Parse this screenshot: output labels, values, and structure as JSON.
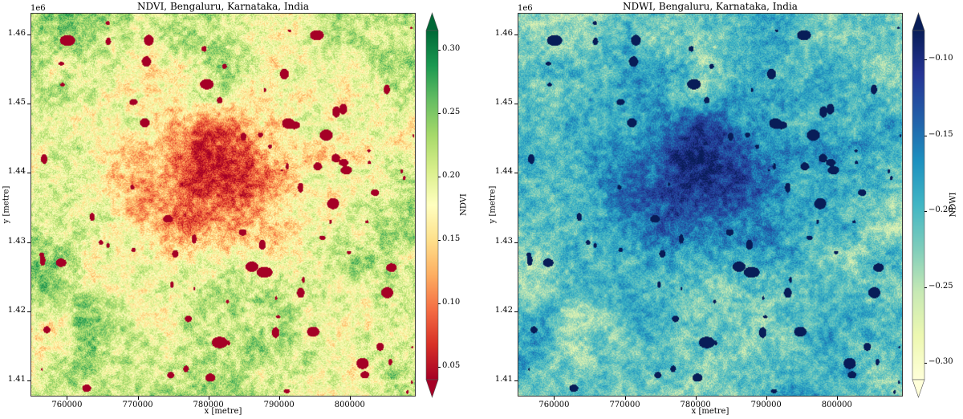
{
  "chart_data": [
    {
      "type": "heatmap",
      "title": "NDVI, Bengaluru, Karnataka, India",
      "xlabel": "x [metre]",
      "ylabel": "y [metre]",
      "y_offset_label": "1e6",
      "xlim": [
        754840,
        809330
      ],
      "ylim": [
        1.4077,
        1.4631
      ],
      "xticks": [
        760000,
        770000,
        780000,
        790000,
        800000
      ],
      "xtick_labels": [
        "760000",
        "770000",
        "780000",
        "790000",
        "800000"
      ],
      "yticks": [
        1.41,
        1.42,
        1.43,
        1.44,
        1.45,
        1.46
      ],
      "ytick_labels": [
        "1.41",
        "1.42",
        "1.43",
        "1.44",
        "1.45",
        "1.46"
      ],
      "colormap": "RdYlGn",
      "colorbar": {
        "label": "NDVI",
        "range": [
          0.04,
          0.315
        ],
        "extend": "both",
        "ticks": [
          0.05,
          0.1,
          0.15,
          0.2,
          0.25,
          0.3
        ],
        "tick_labels": [
          "0.05",
          "0.10",
          "0.15",
          "0.20",
          "0.25",
          "0.30"
        ],
        "colors": [
          "#a50026",
          "#d73027",
          "#f46d43",
          "#fdae61",
          "#fee08b",
          "#ffffbf",
          "#d9ef8b",
          "#a6d96a",
          "#66bd63",
          "#1a9850",
          "#006837"
        ]
      },
      "pattern": "low NDVI (red) urban core centred near x=780000, y=1.437e6; higher NDVI (green) on periphery; dark red water bodies"
    },
    {
      "type": "heatmap",
      "title": "NDWI, Bengaluru, Karnataka, India",
      "xlabel": "x [metre]",
      "ylabel": "y [metre]",
      "y_offset_label": "1e6",
      "xlim": [
        754840,
        809330
      ],
      "ylim": [
        1.4077,
        1.4631
      ],
      "xticks": [
        760000,
        770000,
        780000,
        790000,
        800000
      ],
      "xtick_labels": [
        "760000",
        "770000",
        "780000",
        "790000",
        "800000"
      ],
      "yticks": [
        1.41,
        1.42,
        1.43,
        1.44,
        1.45,
        1.46
      ],
      "ytick_labels": [
        "1.41",
        "1.42",
        "1.43",
        "1.44",
        "1.45",
        "1.46"
      ],
      "colormap": "YlGnBu",
      "colorbar": {
        "label": "NDWI",
        "range": [
          -0.311,
          -0.081
        ],
        "extend": "both",
        "ticks": [
          -0.3,
          -0.25,
          -0.2,
          -0.15,
          -0.1
        ],
        "tick_labels": [
          "−0.30",
          "−0.25",
          "−0.20",
          "−0.15",
          "−0.10"
        ],
        "colors": [
          "#ffffd9",
          "#edf8b1",
          "#c7e9b4",
          "#7fcdbb",
          "#41b6c4",
          "#1d91c0",
          "#225ea8",
          "#253494",
          "#081d58"
        ]
      },
      "pattern": "higher NDWI (dark blue) urban core centred near x=780000, y=1.437e6; lower NDWI (pale yellow) on periphery; navy water bodies"
    }
  ]
}
